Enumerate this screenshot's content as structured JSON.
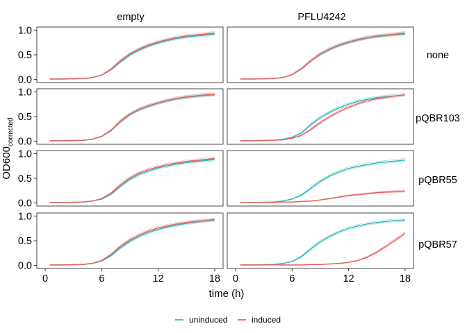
{
  "colors": {
    "uninduced": "#2fb8c1",
    "induced": "#e8625d",
    "uninduced_rep": "#9fd9de",
    "induced_rep": "#f5b8b5",
    "frame": "#333333"
  },
  "chart_data": {
    "type": "line",
    "xlabel": "time (h)",
    "ylabel_main": "OD600",
    "ylabel_sub": "corrected",
    "xlim": [
      0,
      18
    ],
    "ylim": [
      0,
      1.0
    ],
    "xticks": [
      0,
      6,
      12,
      18
    ],
    "xtick_labels": [
      "0",
      "6",
      "12",
      "18"
    ],
    "yticks": [
      0,
      0.5,
      1.0
    ],
    "ytick_labels": [
      "0.0",
      "0.5",
      "1.0"
    ],
    "columns": [
      "empty",
      "PFLU4242"
    ],
    "rows": [
      "none",
      "pQBR103",
      "pQBR55",
      "pQBR57"
    ],
    "legend": {
      "position": "bottom",
      "entries": [
        {
          "key": "uninduced",
          "label": "uninduced"
        },
        {
          "key": "induced",
          "label": "induced"
        }
      ]
    },
    "x": [
      0.5,
      2,
      4,
      5,
      6,
      7,
      8,
      9,
      10,
      11,
      12,
      13,
      14,
      15,
      16,
      17,
      18
    ],
    "panels": [
      {
        "row": "none",
        "column": "empty",
        "series": [
          {
            "key": "uninduced",
            "values": [
              0.01,
              0.01,
              0.02,
              0.04,
              0.09,
              0.2,
              0.36,
              0.5,
              0.6,
              0.68,
              0.74,
              0.79,
              0.83,
              0.86,
              0.88,
              0.9,
              0.92
            ]
          },
          {
            "key": "induced",
            "values": [
              0.01,
              0.01,
              0.02,
              0.04,
              0.09,
              0.21,
              0.38,
              0.52,
              0.62,
              0.7,
              0.76,
              0.81,
              0.85,
              0.88,
              0.9,
              0.92,
              0.94
            ]
          }
        ]
      },
      {
        "row": "none",
        "column": "PFLU4242",
        "series": [
          {
            "key": "uninduced",
            "values": [
              0.01,
              0.01,
              0.02,
              0.04,
              0.1,
              0.22,
              0.38,
              0.51,
              0.61,
              0.69,
              0.75,
              0.8,
              0.84,
              0.87,
              0.89,
              0.91,
              0.92
            ]
          },
          {
            "key": "induced",
            "values": [
              0.01,
              0.01,
              0.02,
              0.04,
              0.1,
              0.22,
              0.38,
              0.52,
              0.62,
              0.7,
              0.76,
              0.81,
              0.85,
              0.88,
              0.9,
              0.92,
              0.94
            ]
          }
        ]
      },
      {
        "row": "pQBR103",
        "column": "empty",
        "series": [
          {
            "key": "uninduced",
            "values": [
              0.01,
              0.01,
              0.02,
              0.04,
              0.1,
              0.22,
              0.4,
              0.54,
              0.64,
              0.71,
              0.77,
              0.82,
              0.86,
              0.89,
              0.91,
              0.93,
              0.94
            ]
          },
          {
            "key": "induced",
            "values": [
              0.01,
              0.01,
              0.02,
              0.04,
              0.1,
              0.22,
              0.41,
              0.55,
              0.65,
              0.72,
              0.78,
              0.83,
              0.87,
              0.9,
              0.92,
              0.94,
              0.95
            ]
          }
        ]
      },
      {
        "row": "pQBR103",
        "column": "PFLU4242",
        "series": [
          {
            "key": "uninduced",
            "values": [
              0.01,
              0.01,
              0.02,
              0.04,
              0.08,
              0.17,
              0.34,
              0.48,
              0.59,
              0.68,
              0.75,
              0.81,
              0.85,
              0.88,
              0.9,
              0.92,
              0.94
            ]
          },
          {
            "key": "induced",
            "values": [
              0.01,
              0.01,
              0.02,
              0.03,
              0.06,
              0.12,
              0.24,
              0.38,
              0.5,
              0.6,
              0.69,
              0.76,
              0.82,
              0.86,
              0.89,
              0.92,
              0.94
            ]
          }
        ]
      },
      {
        "row": "pQBR55",
        "column": "empty",
        "series": [
          {
            "key": "uninduced",
            "values": [
              0.01,
              0.01,
              0.02,
              0.04,
              0.08,
              0.18,
              0.34,
              0.48,
              0.58,
              0.65,
              0.71,
              0.75,
              0.79,
              0.82,
              0.84,
              0.86,
              0.88
            ]
          },
          {
            "key": "induced",
            "values": [
              0.01,
              0.01,
              0.02,
              0.04,
              0.09,
              0.2,
              0.37,
              0.51,
              0.61,
              0.68,
              0.73,
              0.78,
              0.81,
              0.84,
              0.86,
              0.88,
              0.9
            ]
          }
        ]
      },
      {
        "row": "pQBR55",
        "column": "PFLU4242",
        "series": [
          {
            "key": "uninduced",
            "values": [
              0.01,
              0.01,
              0.02,
              0.04,
              0.08,
              0.16,
              0.3,
              0.44,
              0.55,
              0.63,
              0.7,
              0.74,
              0.78,
              0.81,
              0.83,
              0.85,
              0.87
            ]
          },
          {
            "key": "induced",
            "values": [
              0.01,
              0.01,
              0.01,
              0.02,
              0.02,
              0.03,
              0.04,
              0.06,
              0.09,
              0.12,
              0.15,
              0.17,
              0.19,
              0.21,
              0.22,
              0.23,
              0.24
            ]
          }
        ]
      },
      {
        "row": "pQBR57",
        "column": "empty",
        "series": [
          {
            "key": "uninduced",
            "values": [
              0.01,
              0.01,
              0.02,
              0.04,
              0.09,
              0.2,
              0.36,
              0.49,
              0.59,
              0.67,
              0.73,
              0.78,
              0.82,
              0.85,
              0.88,
              0.9,
              0.92
            ]
          },
          {
            "key": "induced",
            "values": [
              0.01,
              0.01,
              0.02,
              0.04,
              0.1,
              0.22,
              0.39,
              0.52,
              0.62,
              0.7,
              0.76,
              0.8,
              0.84,
              0.87,
              0.89,
              0.91,
              0.93
            ]
          }
        ]
      },
      {
        "row": "pQBR57",
        "column": "PFLU4242",
        "series": [
          {
            "key": "uninduced",
            "values": [
              0.01,
              0.01,
              0.02,
              0.04,
              0.08,
              0.18,
              0.34,
              0.48,
              0.59,
              0.68,
              0.75,
              0.8,
              0.84,
              0.87,
              0.89,
              0.91,
              0.92
            ]
          },
          {
            "key": "induced",
            "values": [
              0.01,
              0.01,
              0.01,
              0.01,
              0.01,
              0.01,
              0.02,
              0.02,
              0.03,
              0.04,
              0.06,
              0.1,
              0.17,
              0.27,
              0.39,
              0.52,
              0.65
            ]
          }
        ]
      }
    ]
  }
}
